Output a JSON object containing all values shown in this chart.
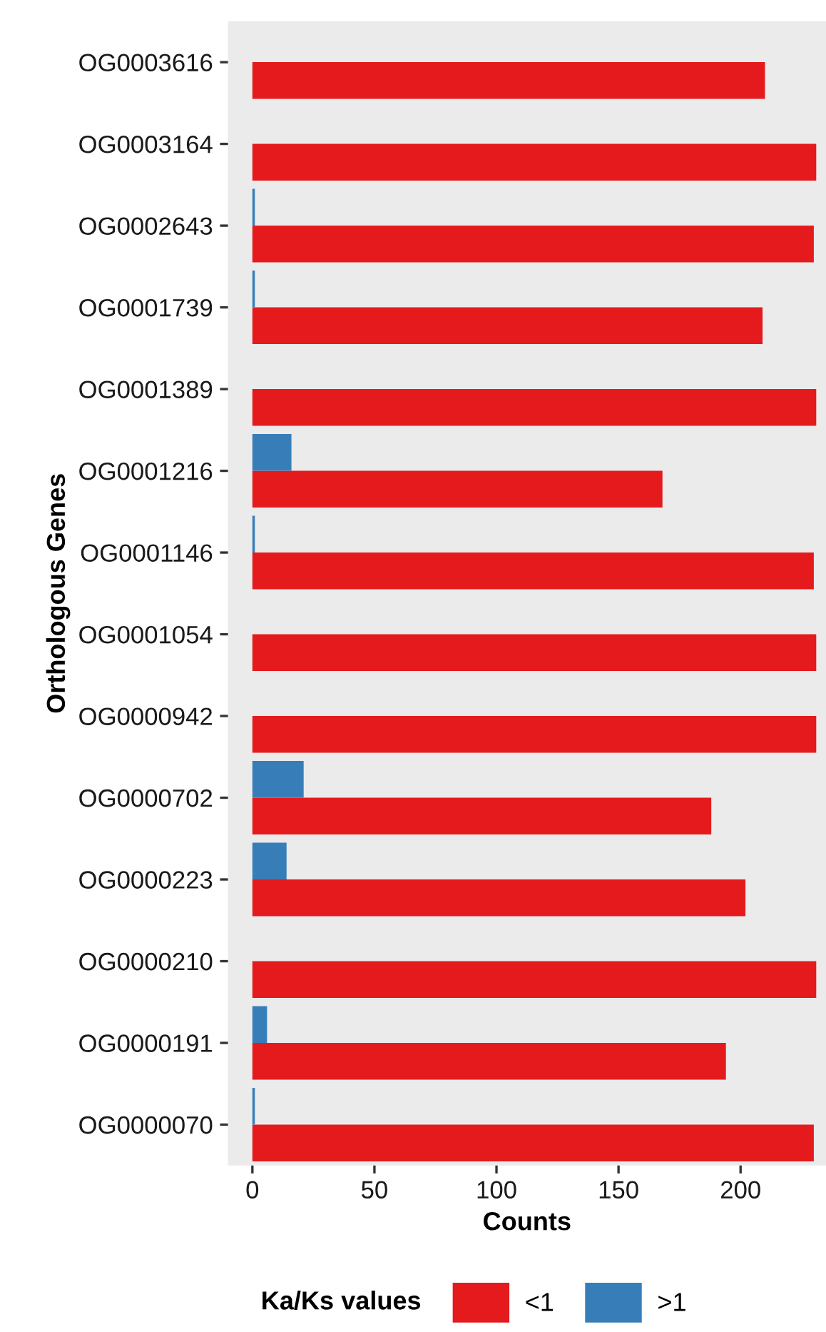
{
  "chart_data": {
    "type": "bar",
    "orientation": "horizontal",
    "xlabel": "Counts",
    "ylabel": "Orthologous Genes",
    "legend_title": "Ka/Ks values",
    "legend": "bottom",
    "grid": false,
    "categories": [
      "OG0003616",
      "OG0003164",
      "OG0002643",
      "OG0001739",
      "OG0001389",
      "OG0001216",
      "OG0001146",
      "OG0001054",
      "OG0000942",
      "OG0000702",
      "OG0000223",
      "OG0000210",
      "OG0000191",
      "OG0000070"
    ],
    "series": [
      {
        "name": "<1",
        "color": "#e41a1c",
        "values": [
          210,
          231,
          230,
          209,
          231,
          168,
          230,
          231,
          231,
          188,
          202,
          231,
          194,
          230
        ]
      },
      {
        "name": ">1",
        "color": "#377eb8",
        "values": [
          0,
          0,
          1,
          1,
          0,
          16,
          1,
          0,
          0,
          21,
          14,
          0,
          6,
          1
        ]
      }
    ],
    "xlim": [
      -10,
      235
    ],
    "xticks": [
      0,
      50,
      100,
      150,
      200
    ]
  }
}
